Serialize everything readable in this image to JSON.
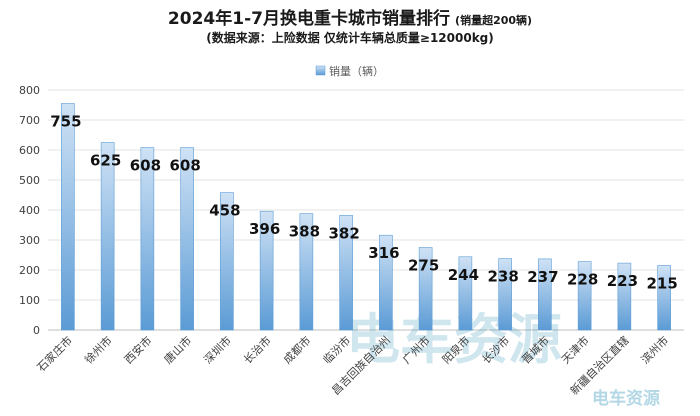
{
  "chart_data": {
    "type": "bar",
    "title": "2024年1-7月换电重卡城市销量排行",
    "title_note": "(销量超200辆)",
    "subtitle": "(数据来源：上险数据 仅统计车辆总质量≥12000kg)",
    "legend_label": "销量（辆）",
    "legend_position": "top-center",
    "categories": [
      "石家庄市",
      "徐州市",
      "西安市",
      "唐山市",
      "深圳市",
      "长治市",
      "成都市",
      "临汾市",
      "昌吉回族自治州",
      "广州市",
      "阳泉市",
      "长沙市",
      "晋城市",
      "天津市",
      "新疆自治区直辖",
      "滨州市"
    ],
    "series": [
      {
        "name": "销量（辆）",
        "values": [
          755,
          625,
          608,
          608,
          458,
          396,
          388,
          382,
          316,
          275,
          244,
          238,
          237,
          228,
          223,
          215
        ]
      }
    ],
    "ylim": [
      0,
      800
    ],
    "yticks": [
      0,
      100,
      200,
      300,
      400,
      500,
      600,
      700,
      800
    ],
    "grid": true,
    "bar_color_top": "#cfe2f5",
    "bar_color_bottom": "#5b9bd5",
    "watermark_text": "电车资源",
    "watermark_corner_text": "电车资源"
  }
}
